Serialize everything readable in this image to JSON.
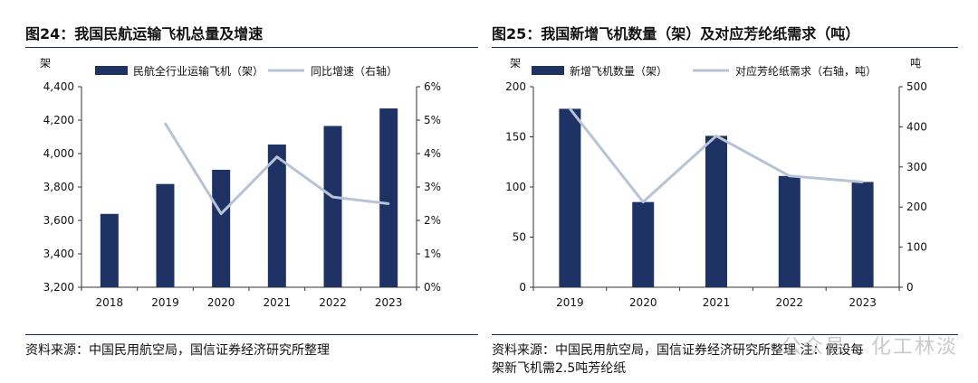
{
  "charts": [
    {
      "title": "图24：我国民航运输飞机总量及增速",
      "source": "资料来源：中国民用航空局，国信证券经济研究所整理",
      "source_line2": "",
      "left_unit": "架",
      "right_unit": "",
      "bar_legend": "民航全行业运输飞机（架）",
      "line_legend": "同比增速（右轴）",
      "left_ticks": [
        "3,200",
        "3,400",
        "3,600",
        "3,800",
        "4,000",
        "4,200",
        "4,400"
      ],
      "right_ticks": [
        "0%",
        "1%",
        "2%",
        "3%",
        "4%",
        "5%",
        "6%"
      ]
    },
    {
      "title": "图25：我国新增飞机数量（架）及对应芳纶纸需求（吨）",
      "source": "资料来源：中国民用航空局，国信证券经济研究所整理    注：假设每",
      "source_line2": "架新飞机需2.5吨芳纶纸",
      "left_unit": "架",
      "right_unit": "吨",
      "bar_legend": "新增飞机数量（架）",
      "line_legend": "对应芳纶纸需求（右轴，吨）",
      "left_ticks": [
        "0",
        "50",
        "100",
        "150",
        "200"
      ],
      "right_ticks": [
        "0",
        "100",
        "200",
        "300",
        "400",
        "500"
      ]
    }
  ],
  "watermark": "公众号 · 化工林淡",
  "colors": {
    "bar": "#1f3264",
    "line": "#b8c3d6",
    "axis": "#333333",
    "rule": "#1a2a5a"
  },
  "chart_data": [
    {
      "type": "bar",
      "categories": [
        "2018",
        "2019",
        "2020",
        "2021",
        "2022",
        "2023"
      ],
      "series": [
        {
          "name": "民航全行业运输飞机（架）",
          "type": "bar",
          "axis": "left",
          "values": [
            3639,
            3818,
            3903,
            4054,
            4165,
            4270
          ]
        },
        {
          "name": "同比增速（右轴）",
          "type": "line",
          "axis": "right",
          "values": [
            null,
            4.9,
            2.2,
            3.9,
            2.7,
            2.5
          ]
        }
      ],
      "ylim_left": [
        3200,
        4400
      ],
      "ylim_right": [
        0,
        6
      ],
      "grid": false,
      "legend_position": "top"
    },
    {
      "type": "bar",
      "categories": [
        "2019",
        "2020",
        "2021",
        "2022",
        "2023"
      ],
      "series": [
        {
          "name": "新增飞机数量（架）",
          "type": "bar",
          "axis": "left",
          "values": [
            178,
            85,
            151,
            111,
            105
          ]
        },
        {
          "name": "对应芳纶纸需求（右轴，吨）",
          "type": "line",
          "axis": "right",
          "values": [
            445,
            212.5,
            377.5,
            277.5,
            262.5
          ]
        }
      ],
      "ylim_left": [
        0,
        200
      ],
      "ylim_right": [
        0,
        500
      ],
      "grid": false,
      "legend_position": "top"
    }
  ]
}
